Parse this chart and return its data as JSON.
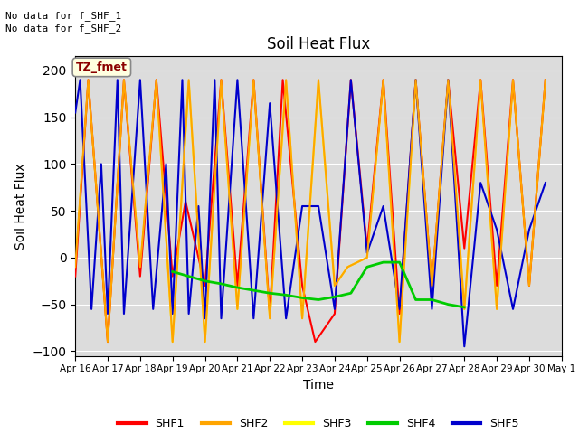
{
  "title": "Soil Heat Flux",
  "xlabel": "Time",
  "ylabel": "Soil Heat Flux",
  "ylim": [
    -105,
    215
  ],
  "yticks": [
    -100,
    -50,
    0,
    50,
    100,
    150,
    200
  ],
  "background_color": "#dcdcdc",
  "annotations": [
    "No data for f_SHF_1",
    "No data for f_SHF_2"
  ],
  "tz_label": "TZ_fmet",
  "legend": [
    "SHF1",
    "SHF2",
    "SHF3",
    "SHF4",
    "SHF5"
  ],
  "colors": {
    "SHF1": "#ff0000",
    "SHF2": "#ffa500",
    "SHF3": "#ffff00",
    "SHF4": "#00cc00",
    "SHF5": "#0000cc"
  },
  "x_labels": [
    "Apr 16",
    "Apr 17",
    "Apr 18",
    "Apr 19",
    "Apr 20",
    "Apr 21",
    "Apr 22",
    "Apr 23",
    "Apr 24",
    "Apr 25",
    "Apr 26",
    "Apr 27",
    "Apr 28",
    "Apr 29",
    "Apr 30",
    "May 1"
  ],
  "SHF1_x": [
    0,
    0.4,
    0.4,
    1.0,
    1.0,
    1.5,
    1.5,
    2.0,
    2.0,
    2.5,
    2.5,
    3.0,
    3.0,
    3.4,
    3.4,
    4.0,
    4.0,
    4.5,
    4.5,
    5.0,
    5.0,
    5.5,
    5.5,
    6.0,
    6.0,
    6.4,
    6.4,
    7.0,
    7.0,
    7.4,
    7.4,
    8.0,
    8.0,
    8.5,
    8.5,
    9.0,
    9.0,
    9.5,
    9.5,
    10.0,
    10.0,
    10.5,
    10.5,
    11.0,
    11.0,
    11.5,
    11.5,
    12.0,
    12.0,
    12.5,
    12.5,
    13.0,
    13.0,
    13.5,
    13.5,
    14.0,
    14.0,
    14.5
  ],
  "SHF1_y": [
    -20,
    190,
    190,
    -90,
    -90,
    190,
    190,
    -20,
    -20,
    190,
    190,
    -20,
    -20,
    60,
    60,
    -30,
    -30,
    190,
    190,
    -30,
    -30,
    190,
    190,
    -60,
    -60,
    190,
    190,
    -30,
    -30,
    -90,
    -90,
    -60,
    -60,
    190,
    190,
    10,
    10,
    190,
    190,
    -60,
    -60,
    190,
    190,
    -30,
    -30,
    190,
    190,
    10,
    10,
    190,
    190,
    -30,
    -30,
    190,
    190,
    -30,
    -30,
    190
  ],
  "SHF2_x": [
    0,
    0.4,
    0.4,
    1.0,
    1.0,
    1.5,
    1.5,
    2.0,
    2.0,
    2.5,
    2.5,
    3.0,
    3.0,
    3.5,
    3.5,
    4.0,
    4.0,
    4.5,
    4.5,
    5.0,
    5.0,
    5.5,
    5.5,
    6.0,
    6.0,
    6.5,
    6.5,
    7.0,
    7.0,
    7.5,
    7.5,
    8.0,
    8.0,
    8.4,
    8.4,
    9.0,
    9.0,
    9.5,
    9.5,
    10.0,
    10.0,
    10.5,
    10.5,
    11.0,
    11.0,
    11.5,
    11.5,
    12.0,
    12.0,
    12.5,
    12.5,
    13.0,
    13.0,
    13.5,
    13.5,
    14.0,
    14.0,
    14.5
  ],
  "SHF2_y": [
    -10,
    190,
    190,
    -90,
    -90,
    190,
    190,
    -10,
    -10,
    190,
    190,
    -90,
    -90,
    190,
    190,
    -90,
    -90,
    190,
    190,
    -55,
    -55,
    190,
    190,
    -65,
    -65,
    190,
    190,
    -65,
    -65,
    190,
    190,
    -30,
    -30,
    -10,
    -10,
    0,
    0,
    190,
    190,
    -90,
    -90,
    190,
    190,
    -30,
    -30,
    190,
    190,
    -55,
    -55,
    190,
    190,
    -55,
    -55,
    190,
    190,
    -30,
    -30,
    190
  ],
  "SHF3_x": [
    0,
    0.4,
    0.4,
    1.0,
    1.0,
    1.5,
    1.5,
    2.0,
    2.0,
    2.5,
    2.5,
    3.0,
    3.0,
    3.5,
    3.5,
    4.0,
    4.0,
    4.5,
    4.5,
    5.0,
    5.0,
    5.5,
    5.5,
    6.0,
    6.0,
    6.5,
    6.5,
    7.0,
    7.0,
    7.5,
    7.5,
    8.0,
    8.0,
    8.4,
    8.4,
    9.0,
    9.0,
    9.5,
    9.5,
    10.0,
    10.0,
    10.5,
    10.5,
    11.0,
    11.0,
    11.5,
    11.5,
    12.0,
    12.0,
    12.5,
    12.5,
    13.0,
    13.0,
    13.5,
    13.5,
    14.0,
    14.0,
    14.5
  ],
  "SHF3_y": [
    -10,
    188,
    188,
    -90,
    -90,
    188,
    188,
    -10,
    -10,
    188,
    188,
    -90,
    -90,
    188,
    188,
    -90,
    -90,
    188,
    188,
    -55,
    -55,
    188,
    188,
    -65,
    -65,
    188,
    188,
    -65,
    -65,
    188,
    188,
    -30,
    -30,
    -10,
    -10,
    0,
    0,
    188,
    188,
    -90,
    -90,
    188,
    188,
    -30,
    -30,
    188,
    188,
    -55,
    -55,
    188,
    188,
    -55,
    -55,
    188,
    188,
    -30,
    -30,
    188
  ],
  "SHF4_x": [
    3.0,
    3.5,
    4.0,
    4.5,
    5.0,
    5.5,
    6.0,
    6.5,
    7.0,
    7.5,
    8.0,
    8.5,
    9.0,
    9.5,
    10.0,
    10.5,
    11.0,
    11.5,
    12.0
  ],
  "SHF4_y": [
    -15,
    -20,
    -25,
    -28,
    -32,
    -35,
    -38,
    -40,
    -43,
    -45,
    -42,
    -38,
    -10,
    -5,
    -5,
    -45,
    -45,
    -50,
    -53
  ],
  "SHF5_x": [
    0,
    0.15,
    0.15,
    0.5,
    0.5,
    0.8,
    0.8,
    1.0,
    1.0,
    1.3,
    1.3,
    1.5,
    1.5,
    2.0,
    2.0,
    2.4,
    2.4,
    2.8,
    2.8,
    3.0,
    3.0,
    3.3,
    3.3,
    3.5,
    3.5,
    3.8,
    3.8,
    4.0,
    4.0,
    4.3,
    4.3,
    4.5,
    4.5,
    5.0,
    5.0,
    5.5,
    5.5,
    6.0,
    6.0,
    6.5,
    6.5,
    7.0,
    7.0,
    7.5,
    7.5,
    8.0,
    8.0,
    8.5,
    8.5,
    9.0,
    9.0,
    9.5,
    9.5,
    10.0,
    10.0,
    10.5,
    10.5,
    11.0,
    11.0,
    11.5,
    11.5,
    12.0,
    12.0,
    12.5,
    12.5,
    13.0,
    13.0,
    13.5,
    13.5,
    14.0,
    14.0,
    14.5
  ],
  "SHF5_y": [
    155,
    190,
    190,
    -55,
    -55,
    100,
    100,
    -60,
    -60,
    190,
    190,
    -60,
    -60,
    190,
    190,
    -55,
    -55,
    100,
    100,
    -60,
    -60,
    190,
    190,
    -60,
    -60,
    55,
    55,
    -65,
    -65,
    190,
    190,
    -65,
    -65,
    190,
    190,
    -65,
    -65,
    165,
    165,
    -65,
    -65,
    55,
    55,
    55,
    55,
    -55,
    -55,
    190,
    190,
    5,
    5,
    55,
    55,
    -55,
    -55,
    190,
    190,
    -55,
    -55,
    190,
    190,
    -95,
    -95,
    80,
    80,
    30,
    30,
    -55,
    -55,
    30,
    30,
    80
  ]
}
